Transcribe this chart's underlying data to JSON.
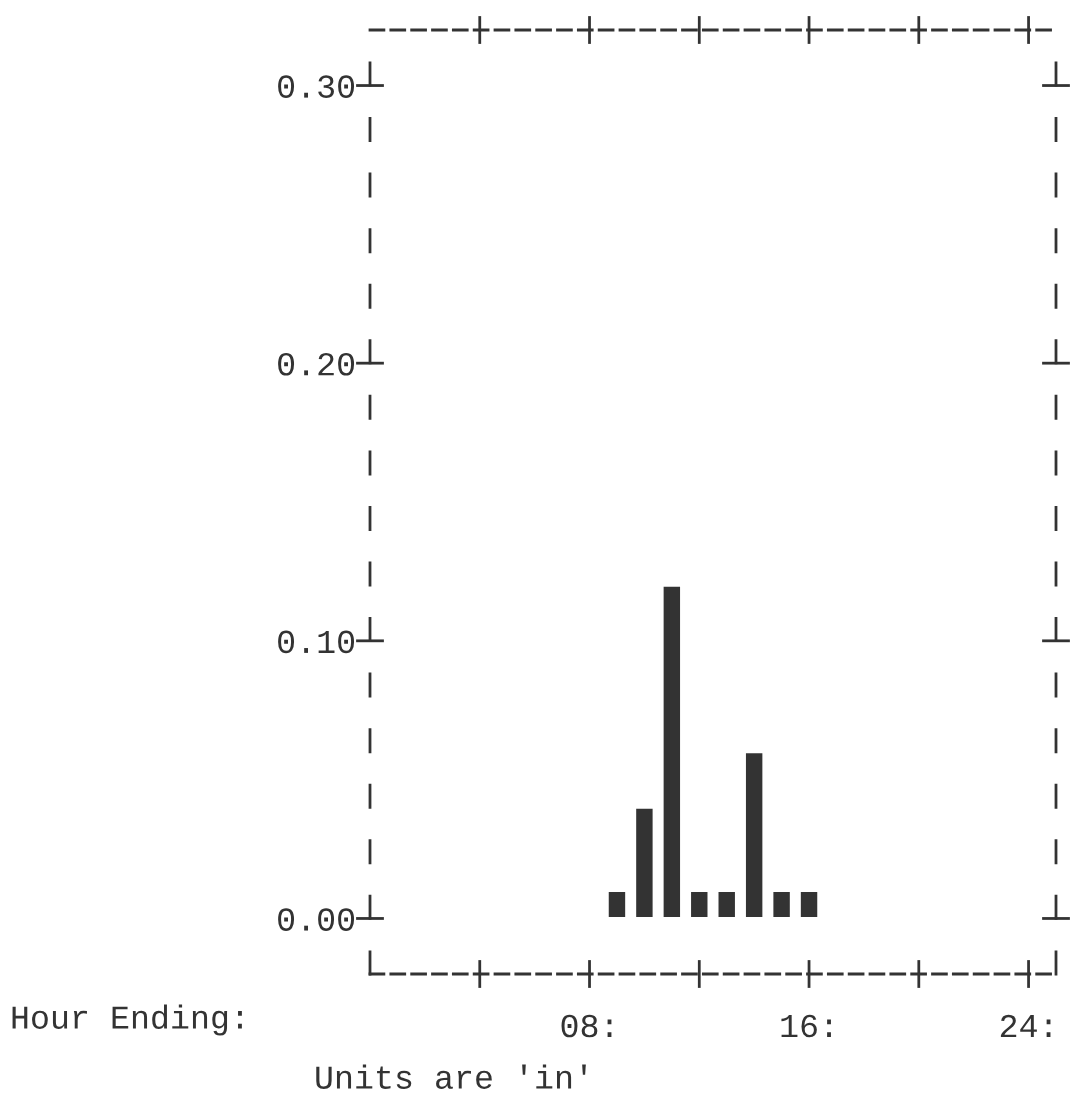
{
  "chart_data": {
    "type": "bar",
    "xlabel": "Hour Ending:",
    "annotations": [
      "Units are 'in'"
    ],
    "x": [
      9,
      10,
      11,
      12,
      13,
      14,
      15,
      16
    ],
    "values": [
      0.01,
      0.04,
      0.12,
      0.01,
      0.01,
      0.06,
      0.01,
      0.01
    ],
    "color": "#333333",
    "xlim": [
      0,
      25
    ],
    "xticks": [
      {
        "value": 4,
        "label": null
      },
      {
        "value": 8,
        "label": "08:"
      },
      {
        "value": 12,
        "label": null
      },
      {
        "value": 16,
        "label": "16:"
      },
      {
        "value": 20,
        "label": null
      },
      {
        "value": 24,
        "label": "24:"
      }
    ],
    "ylim": [
      -0.02,
      0.32
    ],
    "yticks": [
      {
        "value": 0,
        "label": "0.00"
      },
      {
        "value": 0.1,
        "label": "0.10"
      },
      {
        "value": 0.2,
        "label": "0.20"
      },
      {
        "value": 0.3,
        "label": "0.30"
      }
    ],
    "grid": false,
    "legend": false
  }
}
